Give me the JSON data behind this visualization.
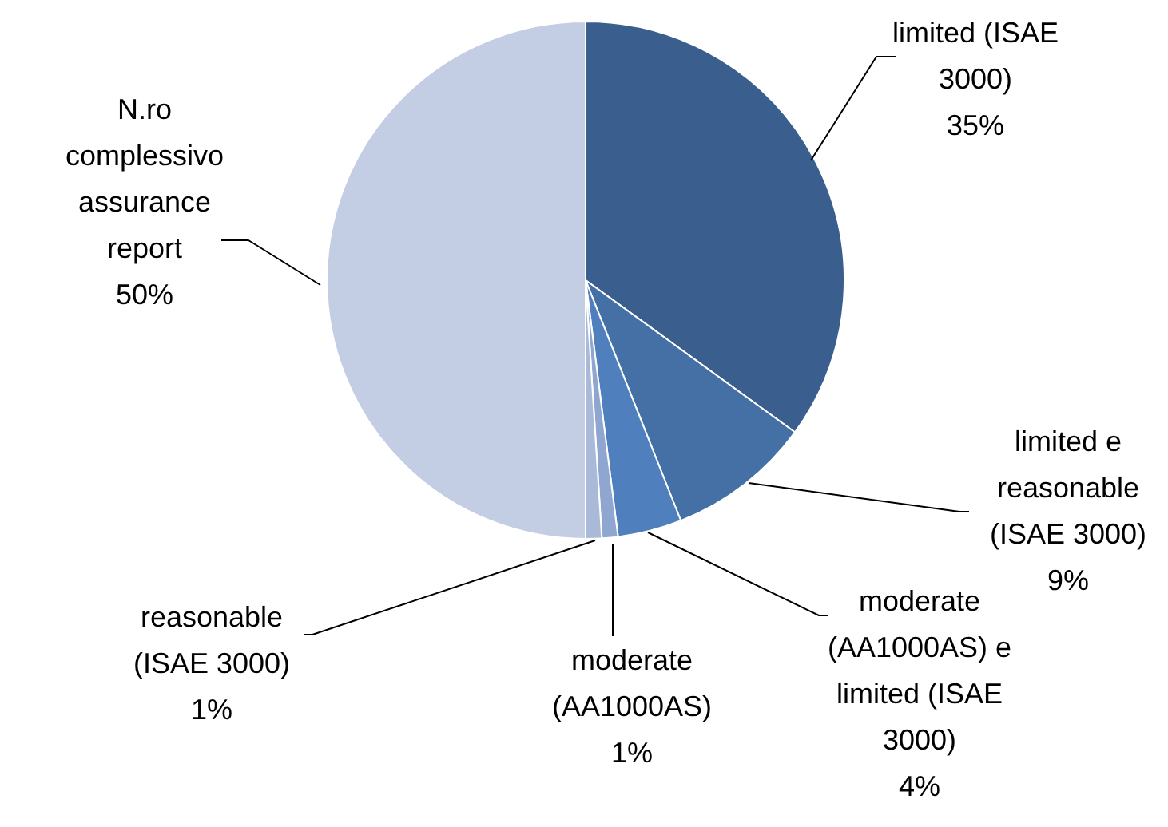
{
  "chart_data": {
    "type": "pie",
    "categories": [
      "limited (ISAE 3000)",
      "limited e reasonable (ISAE 3000)",
      "moderate (AA1000AS) e limited (ISAE 3000)",
      "moderate (AA1000AS)",
      "reasonable (ISAE 3000)",
      "N.ro complessivo assurance report"
    ],
    "values": [
      35,
      9,
      4,
      1,
      1,
      50
    ],
    "colors": [
      "#3a5f8f",
      "#4470a6",
      "#4f7fbd",
      "#8fa6d0",
      "#a9bad9",
      "#c3cde3"
    ],
    "value_labels": [
      "35%",
      "9%",
      "4%",
      "1%",
      "1%",
      "50%"
    ],
    "data_labels": true,
    "legend": false
  }
}
